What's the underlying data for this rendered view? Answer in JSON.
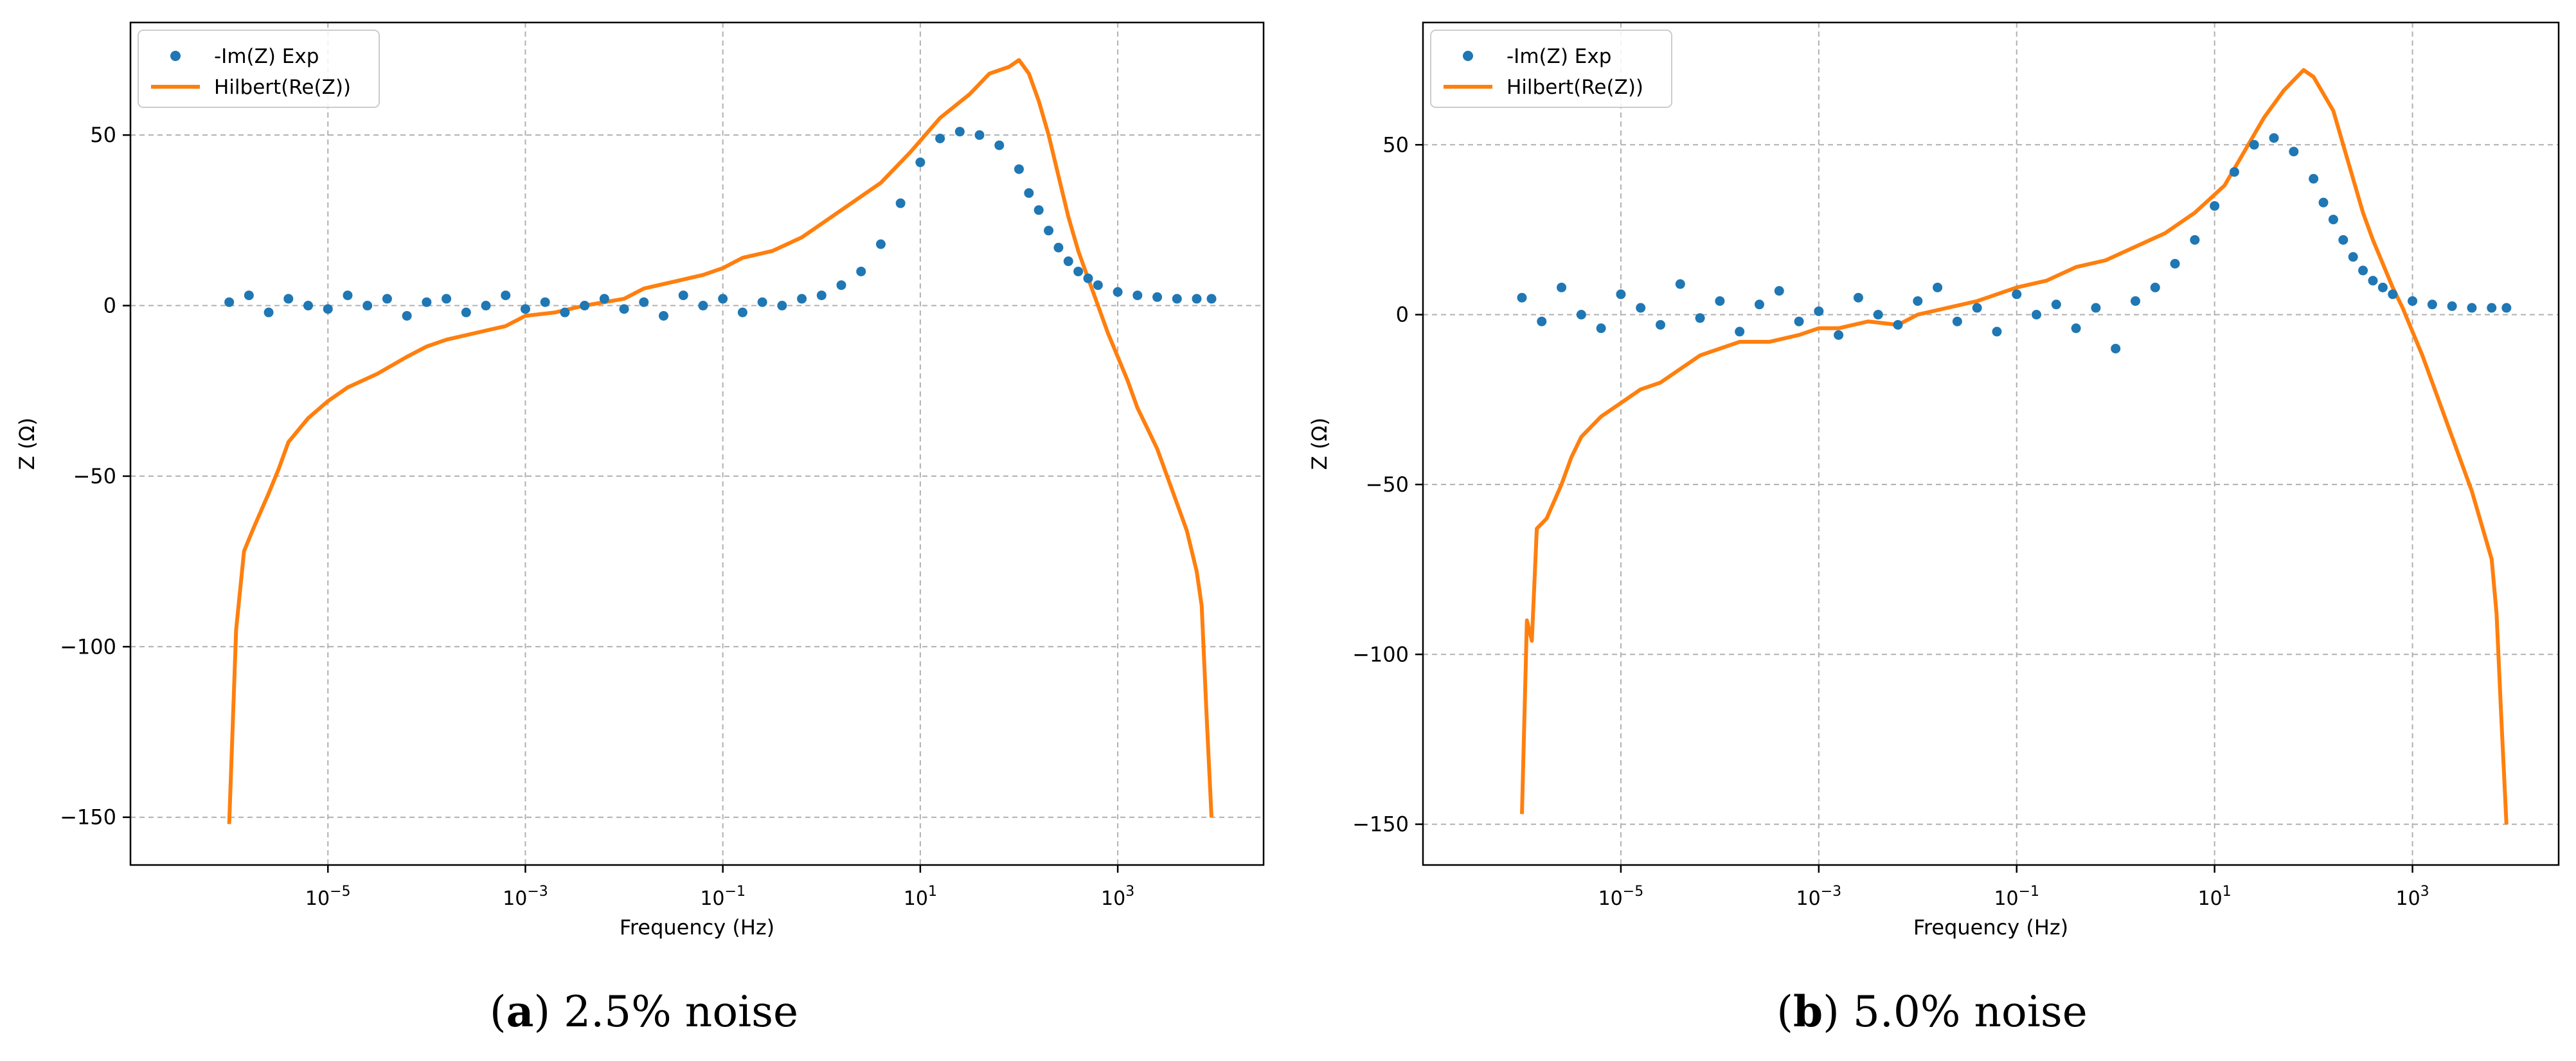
{
  "chart_data": [
    {
      "type": "line",
      "caption": {
        "open": "(",
        "letter": "a",
        "close": ")",
        "text": "2.5% noise"
      },
      "xlabel": "Frequency (Hz)",
      "ylabel": "Z (Ω)",
      "xscale": "log",
      "xlim": [
        1e-07,
        30000.0
      ],
      "ylim": [
        -164,
        83
      ],
      "xticks": [
        {
          "base": "10",
          "exp": "−5",
          "v": -5
        },
        {
          "base": "10",
          "exp": "−3",
          "v": -3
        },
        {
          "base": "10",
          "exp": "−1",
          "v": -1
        },
        {
          "base": "10",
          "exp": "1",
          "v": 1
        },
        {
          "base": "10",
          "exp": "3",
          "v": 3
        }
      ],
      "yticks": [
        {
          "label": "−150",
          "v": -150
        },
        {
          "label": "−100",
          "v": -100
        },
        {
          "label": "−50",
          "v": -50
        },
        {
          "label": "0",
          "v": 0
        },
        {
          "label": "50",
          "v": 50
        }
      ],
      "grid": true,
      "legend": {
        "position": "top-left",
        "entries": [
          {
            "label": "-Im(Z) Exp",
            "style": "marker",
            "color": "#1f77b4"
          },
          {
            "label": "Hilbert(Re(Z))",
            "style": "line",
            "color": "#ff7f0e"
          }
        ]
      },
      "series": [
        {
          "name": "-Im(Z) Exp",
          "style": "scatter",
          "color": "#1f77b4",
          "x_log10": [
            -6.0,
            -5.8,
            -5.6,
            -5.4,
            -5.2,
            -5.0,
            -4.8,
            -4.6,
            -4.4,
            -4.2,
            -4.0,
            -3.8,
            -3.6,
            -3.4,
            -3.2,
            -3.0,
            -2.8,
            -2.6,
            -2.4,
            -2.2,
            -2.0,
            -1.8,
            -1.6,
            -1.4,
            -1.2,
            -1.0,
            -0.8,
            -0.6,
            -0.4,
            -0.2,
            0.0,
            0.2,
            0.4,
            0.6,
            0.8,
            1.0,
            1.2,
            1.4,
            1.6,
            1.8,
            2.0,
            2.1,
            2.2,
            2.3,
            2.4,
            2.5,
            2.6,
            2.7,
            2.8,
            3.0,
            3.2,
            3.4,
            3.6,
            3.8,
            3.95
          ],
          "y": [
            1,
            3,
            -2,
            2,
            0,
            -1,
            3,
            0,
            2,
            -3,
            1,
            2,
            -2,
            0,
            3,
            -1,
            1,
            -2,
            0,
            2,
            -1,
            1,
            -3,
            3,
            0,
            2,
            -2,
            1,
            0,
            2,
            3,
            6,
            10,
            18,
            30,
            42,
            49,
            51,
            50,
            47,
            40,
            33,
            28,
            22,
            17,
            13,
            10,
            8,
            6,
            4,
            3,
            2.5,
            2,
            2,
            2
          ]
        },
        {
          "name": "Hilbert(Re(Z))",
          "style": "line",
          "color": "#ff7f0e",
          "x_log10": [
            -6.0,
            -5.93,
            -5.85,
            -5.75,
            -5.6,
            -5.5,
            -5.4,
            -5.2,
            -5.0,
            -4.8,
            -4.5,
            -4.2,
            -4.0,
            -3.8,
            -3.5,
            -3.2,
            -3.0,
            -2.7,
            -2.4,
            -2.0,
            -1.8,
            -1.5,
            -1.2,
            -1.0,
            -0.8,
            -0.5,
            -0.2,
            0.0,
            0.3,
            0.6,
            0.9,
            1.2,
            1.5,
            1.7,
            1.9,
            2.0,
            2.1,
            2.2,
            2.3,
            2.4,
            2.5,
            2.6,
            2.7,
            2.8,
            2.9,
            3.0,
            3.1,
            3.2,
            3.3,
            3.4,
            3.5,
            3.6,
            3.7,
            3.8,
            3.85,
            3.9,
            3.95
          ],
          "y": [
            -152,
            -95,
            -72,
            -65,
            -55,
            -48,
            -40,
            -33,
            -28,
            -24,
            -20,
            -15,
            -12,
            -10,
            -8,
            -6,
            -3,
            -2,
            0,
            2,
            5,
            7,
            9,
            11,
            14,
            16,
            20,
            24,
            30,
            36,
            45,
            55,
            62,
            68,
            70,
            72,
            68,
            60,
            50,
            38,
            26,
            16,
            8,
            0,
            -8,
            -15,
            -22,
            -30,
            -36,
            -42,
            -50,
            -58,
            -66,
            -78,
            -88,
            -120,
            -150
          ]
        }
      ]
    },
    {
      "type": "line",
      "caption": {
        "open": "(",
        "letter": "b",
        "close": ")",
        "text": "5.0% noise"
      },
      "xlabel": "Frequency (Hz)",
      "ylabel": "Z (Ω)",
      "xscale": "log",
      "xlim": [
        1e-07,
        30000.0
      ],
      "ylim": [
        -162,
        86
      ],
      "xticks": [
        {
          "base": "10",
          "exp": "−5",
          "v": -5
        },
        {
          "base": "10",
          "exp": "−3",
          "v": -3
        },
        {
          "base": "10",
          "exp": "−1",
          "v": -1
        },
        {
          "base": "10",
          "exp": "1",
          "v": 1
        },
        {
          "base": "10",
          "exp": "3",
          "v": 3
        }
      ],
      "yticks": [
        {
          "label": "−150",
          "v": -150
        },
        {
          "label": "−100",
          "v": -100
        },
        {
          "label": "−50",
          "v": -50
        },
        {
          "label": "0",
          "v": 0
        },
        {
          "label": "50",
          "v": 50
        }
      ],
      "grid": true,
      "legend": {
        "position": "top-left",
        "entries": [
          {
            "label": "-Im(Z) Exp",
            "style": "marker",
            "color": "#1f77b4"
          },
          {
            "label": "Hilbert(Re(Z))",
            "style": "line",
            "color": "#ff7f0e"
          }
        ]
      },
      "series": [
        {
          "name": "-Im(Z) Exp",
          "style": "scatter",
          "color": "#1f77b4",
          "x_log10": [
            -6.0,
            -5.8,
            -5.6,
            -5.4,
            -5.2,
            -5.0,
            -4.8,
            -4.6,
            -4.4,
            -4.2,
            -4.0,
            -3.8,
            -3.6,
            -3.4,
            -3.2,
            -3.0,
            -2.8,
            -2.6,
            -2.4,
            -2.2,
            -2.0,
            -1.8,
            -1.6,
            -1.4,
            -1.2,
            -1.0,
            -0.8,
            -0.6,
            -0.4,
            -0.2,
            0.0,
            0.2,
            0.4,
            0.6,
            0.8,
            1.0,
            1.2,
            1.4,
            1.6,
            1.8,
            2.0,
            2.1,
            2.2,
            2.3,
            2.4,
            2.5,
            2.6,
            2.7,
            2.8,
            3.0,
            3.2,
            3.4,
            3.6,
            3.8,
            3.95
          ],
          "y": [
            5,
            -2,
            8,
            0,
            -4,
            6,
            2,
            -3,
            9,
            -1,
            4,
            -5,
            3,
            7,
            -2,
            1,
            -6,
            5,
            0,
            -3,
            4,
            8,
            -2,
            2,
            -5,
            6,
            0,
            3,
            -4,
            2,
            -10,
            4,
            8,
            15,
            22,
            32,
            42,
            50,
            52,
            48,
            40,
            33,
            28,
            22,
            17,
            13,
            10,
            8,
            6,
            4,
            3,
            2.5,
            2,
            2,
            2
          ]
        },
        {
          "name": "Hilbert(Re(Z))",
          "style": "line",
          "color": "#ff7f0e",
          "x_log10": [
            -6.0,
            -5.95,
            -5.9,
            -5.85,
            -5.75,
            -5.6,
            -5.5,
            -5.4,
            -5.2,
            -5.0,
            -4.8,
            -4.6,
            -4.4,
            -4.2,
            -4.0,
            -3.8,
            -3.5,
            -3.2,
            -3.0,
            -2.8,
            -2.5,
            -2.2,
            -2.0,
            -1.7,
            -1.4,
            -1.2,
            -1.0,
            -0.7,
            -0.4,
            -0.1,
            0.2,
            0.5,
            0.8,
            1.1,
            1.3,
            1.5,
            1.7,
            1.9,
            2.0,
            2.1,
            2.2,
            2.3,
            2.4,
            2.5,
            2.6,
            2.7,
            2.8,
            2.9,
            3.0,
            3.1,
            3.2,
            3.3,
            3.4,
            3.5,
            3.6,
            3.7,
            3.8,
            3.85,
            3.9,
            3.95
          ],
          "y": [
            -147,
            -90,
            -96,
            -63,
            -60,
            -50,
            -42,
            -36,
            -30,
            -26,
            -22,
            -20,
            -16,
            -12,
            -10,
            -8,
            -8,
            -6,
            -4,
            -4,
            -2,
            -3,
            0,
            2,
            4,
            6,
            8,
            10,
            14,
            16,
            20,
            24,
            30,
            38,
            48,
            58,
            66,
            72,
            70,
            65,
            60,
            50,
            40,
            30,
            22,
            15,
            8,
            2,
            -5,
            -12,
            -20,
            -28,
            -36,
            -44,
            -52,
            -62,
            -72,
            -88,
            -120,
            -150
          ]
        }
      ]
    }
  ]
}
